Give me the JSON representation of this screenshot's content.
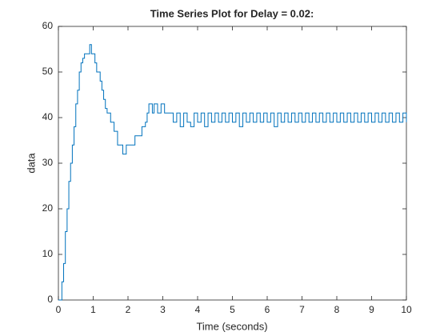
{
  "chart_data": {
    "type": "line",
    "drawstyle": "steps-post",
    "title": "Time Series Plot for Delay = 0.02:",
    "xlabel": "Time (seconds)",
    "ylabel": "data",
    "xlim": [
      0,
      10
    ],
    "ylim": [
      0,
      60
    ],
    "xticks": [
      0,
      1,
      2,
      3,
      4,
      5,
      6,
      7,
      8,
      9,
      10
    ],
    "yticks": [
      0,
      10,
      20,
      30,
      40,
      50,
      60
    ],
    "grid": false,
    "series": [
      {
        "color": "#0072bd",
        "x": [
          0,
          0.1,
          0.15,
          0.2,
          0.25,
          0.3,
          0.35,
          0.4,
          0.45,
          0.5,
          0.55,
          0.6,
          0.65,
          0.7,
          0.75,
          0.9,
          0.95,
          1.05,
          1.1,
          1.2,
          1.25,
          1.3,
          1.35,
          1.4,
          1.5,
          1.6,
          1.7,
          1.85,
          1.95,
          2.2,
          2.4,
          2.5,
          2.55,
          2.6,
          2.7,
          2.75,
          2.85,
          2.95,
          3.05,
          3.3,
          3.4,
          3.5,
          3.6,
          3.7,
          3.8,
          3.9,
          4,
          4.1,
          4.2,
          4.3,
          4.4,
          4.5,
          4.6,
          4.7,
          4.8,
          4.9,
          5,
          5.1,
          5.2,
          5.3,
          5.4,
          5.5,
          5.6,
          5.7,
          5.8,
          5.9,
          6,
          6.1,
          6.2,
          6.3,
          6.4,
          6.5,
          6.6,
          6.7,
          6.8,
          6.9,
          7,
          7.1,
          7.2,
          7.3,
          7.4,
          7.5,
          7.6,
          7.7,
          7.8,
          7.9,
          8,
          8.1,
          8.2,
          8.3,
          8.4,
          8.5,
          8.6,
          8.7,
          8.8,
          8.9,
          9,
          9.1,
          9.2,
          9.3,
          9.4,
          9.5,
          9.6,
          9.7,
          9.8,
          9.9,
          10
        ],
        "values": [
          0,
          4,
          8,
          15,
          20,
          26,
          30,
          34,
          38,
          43,
          46,
          50,
          52,
          53,
          54,
          56,
          54,
          52,
          50,
          48,
          46,
          44,
          42,
          41,
          39,
          37,
          34,
          32,
          34,
          36,
          38,
          39,
          41,
          43,
          41,
          43,
          41,
          43,
          41,
          39,
          41,
          38,
          41,
          39,
          38,
          41,
          39,
          41,
          38,
          41,
          39,
          41,
          39,
          41,
          39,
          41,
          39,
          41,
          38,
          41,
          39,
          41,
          39,
          41,
          39,
          41,
          39,
          41,
          38,
          41,
          39,
          41,
          39,
          41,
          39,
          41,
          39,
          41,
          39,
          41,
          39,
          41,
          39,
          41,
          39,
          41,
          39,
          41,
          39,
          41,
          39,
          41,
          39,
          41,
          39,
          41,
          39,
          41,
          39,
          41,
          39,
          41,
          39,
          41,
          39,
          41,
          39
        ]
      }
    ]
  }
}
